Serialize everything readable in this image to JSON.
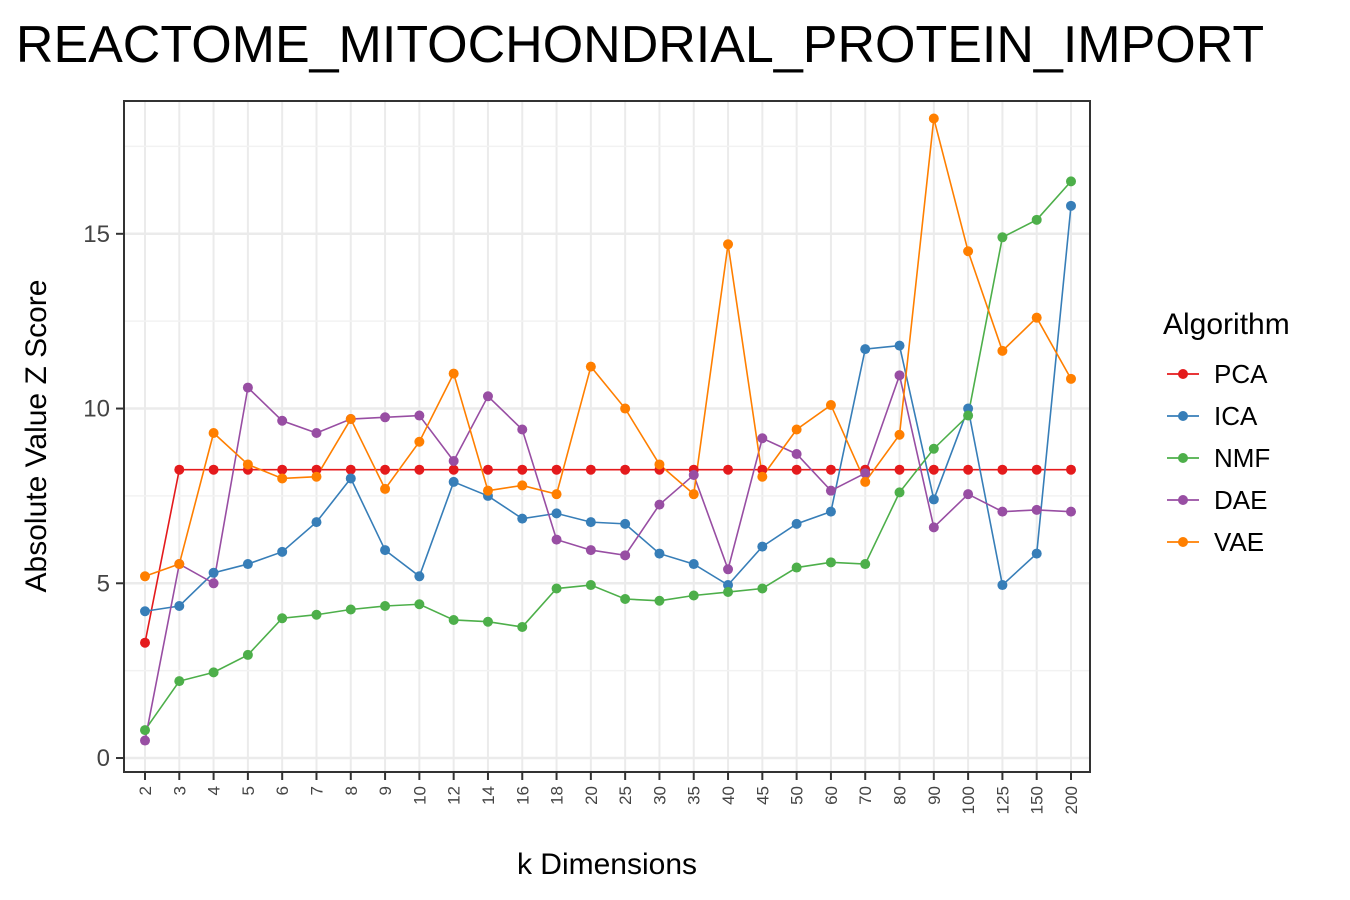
{
  "chart_data": {
    "type": "line",
    "title": "REACTOME_MITOCHONDRIAL_PROTEIN_IMPORT",
    "xlabel": "k Dimensions",
    "ylabel": "Absolute Value Z Score",
    "categories": [
      "2",
      "3",
      "4",
      "5",
      "6",
      "7",
      "8",
      "9",
      "10",
      "12",
      "14",
      "16",
      "18",
      "20",
      "25",
      "30",
      "35",
      "40",
      "45",
      "50",
      "60",
      "70",
      "80",
      "90",
      "100",
      "125",
      "150",
      "200"
    ],
    "yticks": [
      0,
      5,
      10,
      15
    ],
    "ylim": [
      -0.4,
      18.8
    ],
    "grid": true,
    "legend": {
      "title": "Algorithm",
      "position": "right"
    },
    "series": [
      {
        "name": "PCA",
        "color": "#e41a1c",
        "values": [
          3.3,
          8.25,
          8.25,
          8.25,
          8.25,
          8.25,
          8.25,
          8.25,
          8.25,
          8.25,
          8.25,
          8.25,
          8.25,
          8.25,
          8.25,
          8.25,
          8.25,
          8.25,
          8.25,
          8.25,
          8.25,
          8.25,
          8.25,
          8.25,
          8.25,
          8.25,
          8.25,
          8.25
        ]
      },
      {
        "name": "ICA",
        "color": "#377eb8",
        "values": [
          4.2,
          4.35,
          5.3,
          5.55,
          5.9,
          6.75,
          8.0,
          5.95,
          5.2,
          7.9,
          7.5,
          6.85,
          7.0,
          6.75,
          6.7,
          5.85,
          5.55,
          4.95,
          6.05,
          6.7,
          7.05,
          11.7,
          11.8,
          7.4,
          10.0,
          4.95,
          5.85,
          15.8
        ]
      },
      {
        "name": "NMF",
        "color": "#4daf4a",
        "values": [
          0.8,
          2.2,
          2.45,
          2.95,
          4.0,
          4.1,
          4.25,
          4.35,
          4.4,
          3.95,
          3.9,
          3.75,
          4.85,
          4.95,
          4.55,
          4.5,
          4.65,
          4.75,
          4.85,
          5.45,
          5.6,
          5.55,
          7.6,
          8.85,
          9.8,
          14.9,
          15.4,
          16.5
        ]
      },
      {
        "name": "DAE",
        "color": "#984ea3",
        "values": [
          0.5,
          5.55,
          5.0,
          10.6,
          9.65,
          9.3,
          9.7,
          9.75,
          9.8,
          8.5,
          10.35,
          9.4,
          6.25,
          5.95,
          5.8,
          7.25,
          8.1,
          5.4,
          9.15,
          8.7,
          7.65,
          8.15,
          10.95,
          6.6,
          7.55,
          7.05,
          7.1,
          7.05
        ]
      },
      {
        "name": "VAE",
        "color": "#ff7f00",
        "values": [
          5.2,
          5.55,
          9.3,
          8.4,
          8.0,
          8.05,
          9.7,
          7.7,
          9.05,
          11.0,
          7.65,
          7.8,
          7.55,
          11.2,
          10.0,
          8.4,
          7.55,
          14.7,
          8.05,
          9.4,
          10.1,
          7.9,
          9.25,
          18.3,
          14.5,
          11.65,
          12.6,
          10.85
        ]
      }
    ]
  }
}
